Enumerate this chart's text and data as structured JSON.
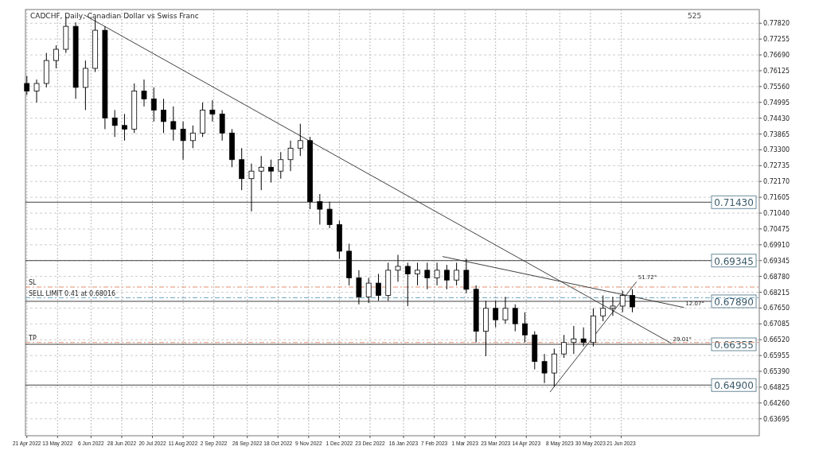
{
  "chart_data": {
    "type": "candlestick",
    "title": "CADCHF, Daily, Canadian Dollar vs Swiss Franc",
    "x": [
      "2022-04-21",
      "2022-04-28",
      "2022-05-05",
      "2022-05-12",
      "2022-05-19",
      "2022-05-26",
      "2022-06-02",
      "2022-06-09",
      "2022-06-16",
      "2022-06-23",
      "2022-06-30",
      "2022-07-07",
      "2022-07-14",
      "2022-07-21",
      "2022-07-28",
      "2022-08-04",
      "2022-08-11",
      "2022-08-18",
      "2022-08-25",
      "2022-09-01",
      "2022-09-08",
      "2022-09-15",
      "2022-09-22",
      "2022-09-29",
      "2022-10-06",
      "2022-10-13",
      "2022-10-20",
      "2022-10-27",
      "2022-11-03",
      "2022-11-10",
      "2022-11-17",
      "2022-11-24",
      "2022-12-01",
      "2022-12-08",
      "2022-12-15",
      "2022-12-22",
      "2022-12-29",
      "2023-01-05",
      "2023-01-12",
      "2023-01-19",
      "2023-01-26",
      "2023-02-02",
      "2023-02-09",
      "2023-02-16",
      "2023-02-23",
      "2023-03-02",
      "2023-03-09",
      "2023-03-16",
      "2023-03-23",
      "2023-03-30",
      "2023-04-06",
      "2023-04-13",
      "2023-04-20",
      "2023-04-27",
      "2023-05-04",
      "2023-05-11",
      "2023-05-18",
      "2023-05-25",
      "2023-06-01",
      "2023-06-08",
      "2023-06-15",
      "2023-06-22",
      "2023-06-29"
    ],
    "ohlc": [
      [
        0.7567,
        0.7594,
        0.7526,
        0.754
      ],
      [
        0.754,
        0.7581,
        0.7499,
        0.7567
      ],
      [
        0.7567,
        0.7676,
        0.7553,
        0.7649
      ],
      [
        0.7649,
        0.7703,
        0.7621,
        0.7689
      ],
      [
        0.7689,
        0.7807,
        0.7676,
        0.7771
      ],
      [
        0.7771,
        0.7785,
        0.7512,
        0.7553
      ],
      [
        0.7553,
        0.7649,
        0.7472,
        0.7621
      ],
      [
        0.7621,
        0.7801,
        0.7608,
        0.7757
      ],
      [
        0.7757,
        0.7771,
        0.7404,
        0.7444
      ],
      [
        0.7444,
        0.7472,
        0.7376,
        0.7417
      ],
      [
        0.7417,
        0.7458,
        0.7363,
        0.7404
      ],
      [
        0.7404,
        0.7567,
        0.739,
        0.754
      ],
      [
        0.754,
        0.7581,
        0.7485,
        0.7512
      ],
      [
        0.7512,
        0.7553,
        0.7431,
        0.7472
      ],
      [
        0.7472,
        0.7512,
        0.739,
        0.7431
      ],
      [
        0.7431,
        0.7485,
        0.7363,
        0.7404
      ],
      [
        0.7404,
        0.7431,
        0.7295,
        0.7363
      ],
      [
        0.7363,
        0.7417,
        0.7336,
        0.739
      ],
      [
        0.739,
        0.7499,
        0.7376,
        0.7472
      ],
      [
        0.7472,
        0.7507,
        0.7431,
        0.7458
      ],
      [
        0.7458,
        0.7472,
        0.7363,
        0.739
      ],
      [
        0.739,
        0.7404,
        0.7268,
        0.7295
      ],
      [
        0.7295,
        0.7336,
        0.7186,
        0.7227
      ],
      [
        0.7227,
        0.7281,
        0.711,
        0.7254
      ],
      [
        0.7254,
        0.7308,
        0.7186,
        0.7268
      ],
      [
        0.7268,
        0.7295,
        0.7213,
        0.7254
      ],
      [
        0.7254,
        0.7322,
        0.7227,
        0.7295
      ],
      [
        0.7295,
        0.7363,
        0.7254,
        0.7336
      ],
      [
        0.7336,
        0.7423,
        0.7308,
        0.7363
      ],
      [
        0.7363,
        0.7376,
        0.7118,
        0.7145
      ],
      [
        0.7145,
        0.7172,
        0.7063,
        0.7118
      ],
      [
        0.7118,
        0.7145,
        0.705,
        0.7063
      ],
      [
        0.7063,
        0.7077,
        0.6941,
        0.6968
      ],
      [
        0.6968,
        0.6995,
        0.6846,
        0.6873
      ],
      [
        0.6873,
        0.69,
        0.6778,
        0.6805
      ],
      [
        0.6805,
        0.6873,
        0.6783,
        0.6854
      ],
      [
        0.6854,
        0.6887,
        0.6791,
        0.681
      ],
      [
        0.681,
        0.6927,
        0.6791,
        0.69
      ],
      [
        0.69,
        0.6955,
        0.6859,
        0.6914
      ],
      [
        0.6914,
        0.6927,
        0.6772,
        0.6887
      ],
      [
        0.6887,
        0.6927,
        0.6846,
        0.69
      ],
      [
        0.69,
        0.6927,
        0.6832,
        0.6873
      ],
      [
        0.6873,
        0.6927,
        0.6846,
        0.69
      ],
      [
        0.69,
        0.6919,
        0.6832,
        0.6865
      ],
      [
        0.6865,
        0.6927,
        0.6846,
        0.69
      ],
      [
        0.69,
        0.6941,
        0.6818,
        0.6832
      ],
      [
        0.6832,
        0.6846,
        0.6642,
        0.6682
      ],
      [
        0.6682,
        0.6791,
        0.6593,
        0.6764
      ],
      [
        0.6764,
        0.6791,
        0.6696,
        0.6723
      ],
      [
        0.6723,
        0.6805,
        0.6709,
        0.6764
      ],
      [
        0.6764,
        0.6778,
        0.6682,
        0.6709
      ],
      [
        0.6709,
        0.675,
        0.6642,
        0.6669
      ],
      [
        0.6669,
        0.6682,
        0.6546,
        0.6574
      ],
      [
        0.6574,
        0.6601,
        0.6497,
        0.6533
      ],
      [
        0.6533,
        0.662,
        0.6484,
        0.6601
      ],
      [
        0.6601,
        0.6669,
        0.6587,
        0.6642
      ],
      [
        0.6642,
        0.6701,
        0.6601,
        0.6655
      ],
      [
        0.6655,
        0.6696,
        0.6628,
        0.6642
      ],
      [
        0.6642,
        0.6764,
        0.6628,
        0.6737
      ],
      [
        0.6737,
        0.681,
        0.6718,
        0.6764
      ],
      [
        0.6764,
        0.6805,
        0.6737,
        0.6772
      ],
      [
        0.6772,
        0.6827,
        0.675,
        0.681
      ],
      [
        0.681,
        0.6832,
        0.675,
        0.6769
      ]
    ],
    "series": [
      {
        "type": "line",
        "color": "#404040",
        "x": [
          "2022-06-01",
          "2023-07-27"
        ],
        "values": [
          0.7812,
          0.6639
        ]
      },
      {
        "type": "line",
        "color": "#404040",
        "x": [
          "2023-02-13",
          "2023-08-05"
        ],
        "values": [
          0.6949,
          0.6767
        ]
      },
      {
        "type": "line",
        "color": "#404040",
        "x": [
          "2023-05-01",
          "2023-07-02"
        ],
        "values": [
          0.6465,
          0.6859
        ]
      }
    ],
    "xlim": [
      "2022-04-20",
      "2023-09-28"
    ],
    "xticks": [
      {
        "value": "2022-04-21",
        "label": "21 Apr 2022"
      },
      {
        "value": "2022-05-13",
        "label": "13 May 2022"
      },
      {
        "value": "2022-06-06",
        "label": "6 Jun 2022"
      },
      {
        "value": "2022-06-28",
        "label": "28 Jun 2022"
      },
      {
        "value": "2022-07-20",
        "label": "20 Jul 2022"
      },
      {
        "value": "2022-08-11",
        "label": "11 Aug 2022"
      },
      {
        "value": "2022-09-02",
        "label": "2 Sep 2022"
      },
      {
        "value": "2022-09-26",
        "label": "26 Sep 2022"
      },
      {
        "value": "2022-10-18",
        "label": "18 Oct 2022"
      },
      {
        "value": "2022-11-09",
        "label": "9 Nov 2022"
      },
      {
        "value": "2022-12-01",
        "label": "1 Dec 2022"
      },
      {
        "value": "2022-12-23",
        "label": "23 Dec 2022"
      },
      {
        "value": "2023-01-16",
        "label": "16 Jan 2023"
      },
      {
        "value": "2023-02-07",
        "label": "7 Feb 2023"
      },
      {
        "value": "2023-03-01",
        "label": "1 Mar 2023"
      },
      {
        "value": "2023-03-23",
        "label": "23 Mar 2023"
      },
      {
        "value": "2023-04-14",
        "label": "14 Apr 2023"
      },
      {
        "value": "2023-05-08",
        "label": "8 May 2023"
      },
      {
        "value": "2023-05-30",
        "label": "30 May 2023"
      },
      {
        "value": "2023-06-21",
        "label": "21 Jun 2023"
      }
    ],
    "ylim": [
      0.6309,
      0.7831
    ],
    "yticks": [
      {
        "value": 0.7782,
        "label": "0.77820"
      },
      {
        "value": 0.77255,
        "label": "0.77255"
      },
      {
        "value": 0.7669,
        "label": "0.76690"
      },
      {
        "value": 0.76125,
        "label": "0.76125"
      },
      {
        "value": 0.7556,
        "label": "0.75560"
      },
      {
        "value": 0.74995,
        "label": "0.74995"
      },
      {
        "value": 0.7443,
        "label": "0.74430"
      },
      {
        "value": 0.73865,
        "label": "0.73865"
      },
      {
        "value": 0.733,
        "label": "0.73300"
      },
      {
        "value": 0.72735,
        "label": "0.72735"
      },
      {
        "value": 0.7217,
        "label": "0.72170"
      },
      {
        "value": 0.71605,
        "label": "0.71605"
      },
      {
        "value": 0.7104,
        "label": "0.71040"
      },
      {
        "value": 0.70475,
        "label": "0.70475"
      },
      {
        "value": 0.6991,
        "label": "0.69910"
      },
      {
        "value": 0.69345,
        "label": "0.69345"
      },
      {
        "value": 0.6878,
        "label": "0.68780"
      },
      {
        "value": 0.68215,
        "label": "0.68215"
      },
      {
        "value": 0.6765,
        "label": "0.67650"
      },
      {
        "value": 0.67085,
        "label": "0.67085"
      },
      {
        "value": 0.6652,
        "label": "0.66520"
      },
      {
        "value": 0.65955,
        "label": "0.65955"
      },
      {
        "value": 0.6539,
        "label": "0.65390"
      },
      {
        "value": 0.64825,
        "label": "0.64825"
      },
      {
        "value": 0.6426,
        "label": "0.64260"
      },
      {
        "value": 0.63695,
        "label": "0.63695"
      }
    ],
    "grid": true,
    "ref_lines": [
      {
        "axis": "y",
        "value": 0.7143,
        "label": "0.71430",
        "color": "#404040",
        "line_style": "solid"
      },
      {
        "axis": "y",
        "value": 0.69345,
        "label": "0.69345",
        "color": "#404040",
        "line_style": "solid"
      },
      {
        "axis": "y",
        "value": 0.6789,
        "label": "0.67890",
        "color": "#404040",
        "line_style": "solid"
      },
      {
        "axis": "y",
        "value": 0.66355,
        "label": "0.66355",
        "color": "#404040",
        "line_style": "solid"
      },
      {
        "axis": "y",
        "value": 0.649,
        "label": "0.64900",
        "color": "#404040",
        "line_style": "solid"
      },
      {
        "axis": "y",
        "value": 0.684,
        "label": "SL",
        "color": "#e09070",
        "line_style": "dashed"
      },
      {
        "axis": "y",
        "value": 0.68016,
        "label": "SELL LIMIT 0.41 at 0.68016",
        "color": "#70a8c8",
        "line_style": "dashed"
      },
      {
        "axis": "y",
        "value": 0.6642,
        "label": "TP",
        "color": "#e09070",
        "line_style": "dashed"
      }
    ],
    "annotations": [
      "525",
      {
        "text": "51.72°",
        "x": "2023-07-02",
        "y": 0.6859
      },
      {
        "text": "12.07°",
        "x": "2023-08-05",
        "y": 0.6767
      },
      {
        "text": "29.01°",
        "x": "2023-07-27",
        "y": 0.6639
      }
    ]
  }
}
